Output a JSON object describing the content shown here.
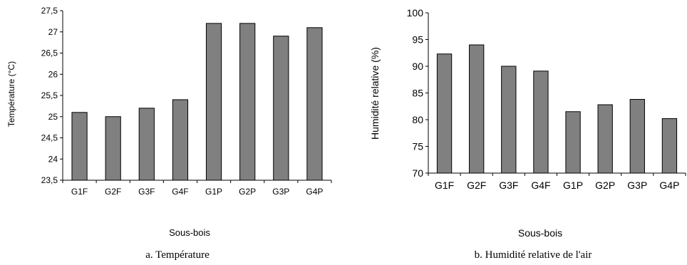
{
  "chart_data": [
    {
      "type": "bar",
      "title": "",
      "xlabel": "Sous-bois",
      "ylabel": "Température (°C)",
      "caption": "a. Température",
      "categories": [
        "G1F",
        "G2F",
        "G3F",
        "G4F",
        "G1P",
        "G2P",
        "G3P",
        "G4P"
      ],
      "values": [
        25.1,
        25.0,
        25.2,
        25.4,
        27.2,
        27.2,
        26.9,
        27.1
      ],
      "ylim": [
        23.5,
        27.5
      ],
      "yticks": [
        "23,5",
        "24",
        "24,5",
        "25",
        "25,5",
        "26",
        "26,5",
        "27",
        "27,5"
      ],
      "bar_color": "#808080",
      "grid": false,
      "legend": "none"
    },
    {
      "type": "bar",
      "title": "",
      "xlabel": "Sous-bois",
      "ylabel": "Humidité relative (%)",
      "caption": "b. Humidité relative de l'air",
      "categories": [
        "G1F",
        "G2F",
        "G3F",
        "G4F",
        "G1P",
        "G2P",
        "G3P",
        "G4P"
      ],
      "values": [
        92.3,
        94.0,
        90.0,
        89.1,
        81.5,
        82.8,
        83.8,
        80.2
      ],
      "ylim": [
        70,
        100
      ],
      "yticks": [
        "70",
        "75",
        "80",
        "85",
        "90",
        "95",
        "100"
      ],
      "bar_color": "#808080",
      "grid": false,
      "legend": "none"
    }
  ]
}
